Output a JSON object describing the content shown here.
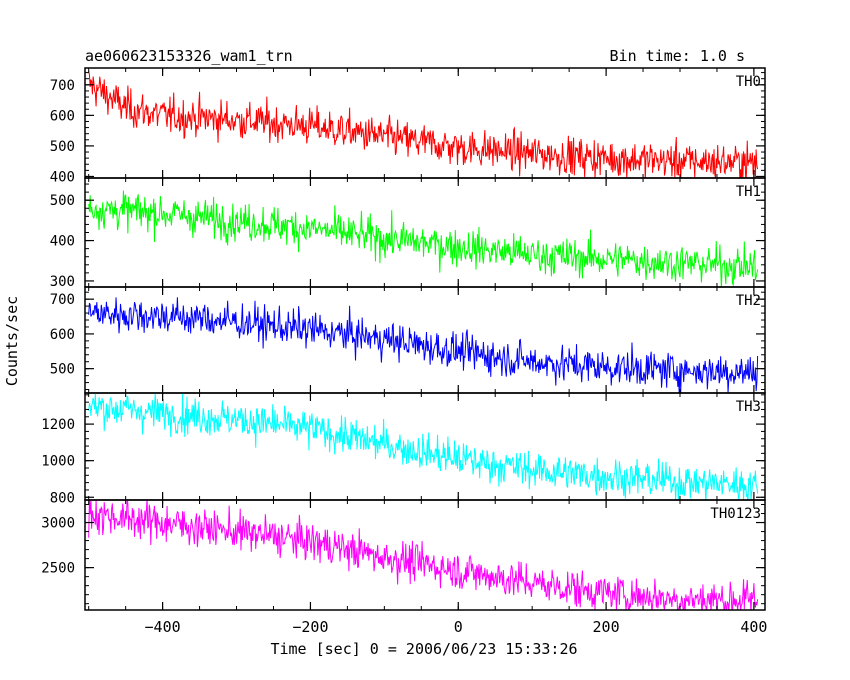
{
  "chart_data": {
    "type": "line",
    "title": "ae060623153326_wam1_trn",
    "subtitle": "Bin time: 1.0 s",
    "xlabel": "Time [sec] 0 = 2006/06/23 15:33:26",
    "ylabel": "Counts/sec",
    "xlim": [
      -505,
      415
    ],
    "x_range": [
      -500,
      405
    ],
    "xticks": [
      -400,
      -200,
      0,
      200,
      400
    ],
    "xtick_labels": [
      "−400",
      "−200",
      "0",
      "200",
      "400"
    ],
    "grid": false,
    "panels": [
      {
        "name": "TH0",
        "color": "#ff0000",
        "ylim": [
          395,
          755
        ],
        "yticks": [
          400,
          500,
          600,
          700
        ],
        "ytick_labels": [
          "400",
          "500",
          "600",
          "700"
        ],
        "series": [
          {
            "name": "TH0",
            "x": [
              -500,
              -450,
              -400,
              -300,
              -200,
              -100,
              0,
              100,
              200,
              300,
              405
            ],
            "y": [
              705,
              625,
              600,
              585,
              565,
              530,
              495,
              475,
              460,
              450,
              445
            ]
          }
        ]
      },
      {
        "name": "TH1",
        "color": "#00ff00",
        "ylim": [
          285,
          555
        ],
        "yticks": [
          300,
          400,
          500
        ],
        "ytick_labels": [
          "300",
          "400",
          "500"
        ],
        "series": [
          {
            "name": "TH1",
            "x": [
              -500,
              -400,
              -300,
              -200,
              -100,
              0,
              100,
              200,
              300,
              405
            ],
            "y": [
              480,
              468,
              448,
              430,
              405,
              385,
              365,
              355,
              345,
              335
            ]
          }
        ]
      },
      {
        "name": "TH2",
        "color": "#0000ff",
        "ylim": [
          430,
          735
        ],
        "yticks": [
          500,
          600,
          700
        ],
        "ytick_labels": [
          "500",
          "600",
          "700"
        ],
        "series": [
          {
            "name": "TH2",
            "x": [
              -500,
              -400,
              -300,
              -200,
              -100,
              0,
              100,
              200,
              300,
              405
            ],
            "y": [
              660,
              652,
              635,
              612,
              585,
              550,
              520,
              505,
              495,
              490
            ]
          }
        ]
      },
      {
        "name": "TH3",
        "color": "#00ffff",
        "ylim": [
          785,
          1370
        ],
        "yticks": [
          800,
          1000,
          1200
        ],
        "ytick_labels": [
          "800",
          "1000",
          "1200"
        ],
        "series": [
          {
            "name": "TH3",
            "x": [
              -500,
              -400,
              -300,
              -200,
              -100,
              0,
              100,
              200,
              300,
              405
            ],
            "y": [
              1300,
              1260,
              1225,
              1175,
              1090,
              1010,
              950,
              915,
              885,
              865
            ]
          }
        ]
      },
      {
        "name": "TH0123",
        "color": "#ff00ff",
        "ylim": [
          2030,
          3250
        ],
        "yticks": [
          2500,
          3000
        ],
        "ytick_labels": [
          "2500",
          "3000"
        ],
        "series": [
          {
            "name": "TH0123",
            "x": [
              -500,
              -400,
              -300,
              -200,
              -100,
              0,
              100,
              200,
              300,
              405
            ],
            "y": [
              3100,
              3000,
              2900,
              2790,
              2620,
              2470,
              2330,
              2220,
              2150,
              2140
            ]
          }
        ]
      }
    ]
  }
}
